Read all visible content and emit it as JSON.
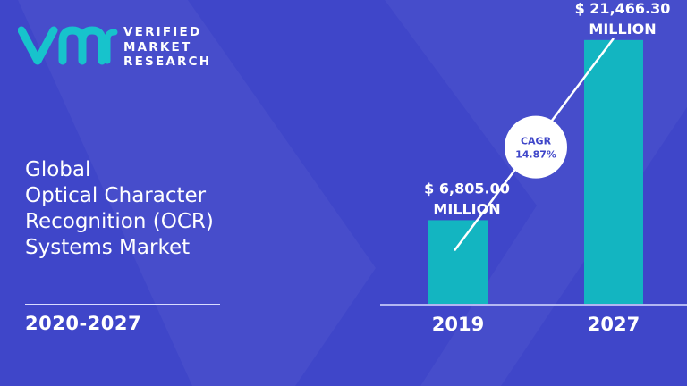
{
  "brand": {
    "lines": [
      "VERIFIED",
      "MARKET",
      "RESEARCH"
    ]
  },
  "title_lines": [
    "Global",
    "Optical Character",
    "Recognition (OCR)",
    "Systems Market"
  ],
  "period": "2020-2027",
  "colors": {
    "background": "#3f46c9",
    "bar": "#13b5c1",
    "logo_mark": "#17c3cc",
    "text": "#ffffff",
    "cagr_text": "#3f46c9"
  },
  "chart_data": {
    "type": "bar",
    "categories": [
      "2019",
      "2027"
    ],
    "values": [
      6805.0,
      21466.3
    ],
    "data_labels": [
      [
        "$ 6,805.00",
        "MILLION"
      ],
      [
        "$ 21,466.30",
        "MILLION"
      ]
    ],
    "unit": "USD Million",
    "ylim": [
      0,
      24000
    ],
    "grid": false,
    "legend": "none",
    "annotation": {
      "label": "CAGR",
      "value": "14.87%"
    }
  }
}
